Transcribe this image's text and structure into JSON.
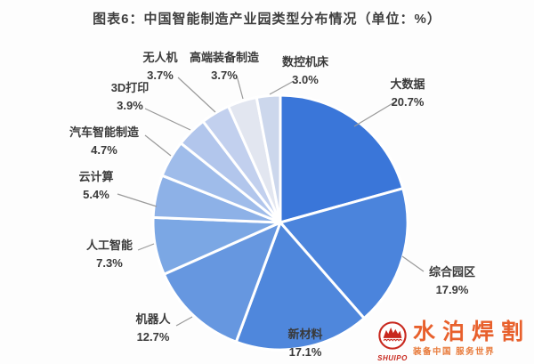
{
  "title": "图表6：中国智能制造产业园类型分布情况（单位：%）",
  "chart_data": {
    "type": "pie",
    "title": "中国智能制造产业园类型分布情况",
    "unit": "%",
    "start_angle_deg": 0,
    "direction": "clockwise",
    "slices": [
      {
        "label": "大数据",
        "value": 20.7,
        "pct_label": "20.7%",
        "color": "#3a76d9"
      },
      {
        "label": "综合园区",
        "value": 17.9,
        "pct_label": "17.9%",
        "color": "#4b84dc"
      },
      {
        "label": "新材料",
        "value": 17.1,
        "pct_label": "17.1%",
        "color": "#4f87dc"
      },
      {
        "label": "机器人",
        "value": 12.7,
        "pct_label": "12.7%",
        "color": "#6697e0"
      },
      {
        "label": "人工智能",
        "value": 7.3,
        "pct_label": "7.3%",
        "color": "#7ba7e4"
      },
      {
        "label": "云计算",
        "value": 5.4,
        "pct_label": "5.4%",
        "color": "#8db1e7"
      },
      {
        "label": "汽车智能制造",
        "value": 4.7,
        "pct_label": "4.7%",
        "color": "#9fbcea"
      },
      {
        "label": "3D打印",
        "value": 3.9,
        "pct_label": "3.9%",
        "color": "#b2c6ec"
      },
      {
        "label": "无人机",
        "value": 3.7,
        "pct_label": "3.7%",
        "color": "#c2d0ee"
      },
      {
        "label": "高端装备制造",
        "value": 3.7,
        "pct_label": "3.7%",
        "color": "#e2e6f0"
      },
      {
        "label": "数控机床",
        "value": 3.0,
        "pct_label": "3.0%",
        "color": "#ccd7ec"
      }
    ],
    "leader_line_color": "#9a9a9a",
    "slice_gap_color": "#ffffff"
  },
  "watermark": {
    "logo_text": "SHUIPO",
    "brand": "水泊焊割",
    "slogan": "装备中国 服务世界",
    "logo_color": "#c8281e",
    "brand_color": "#e8602c"
  }
}
